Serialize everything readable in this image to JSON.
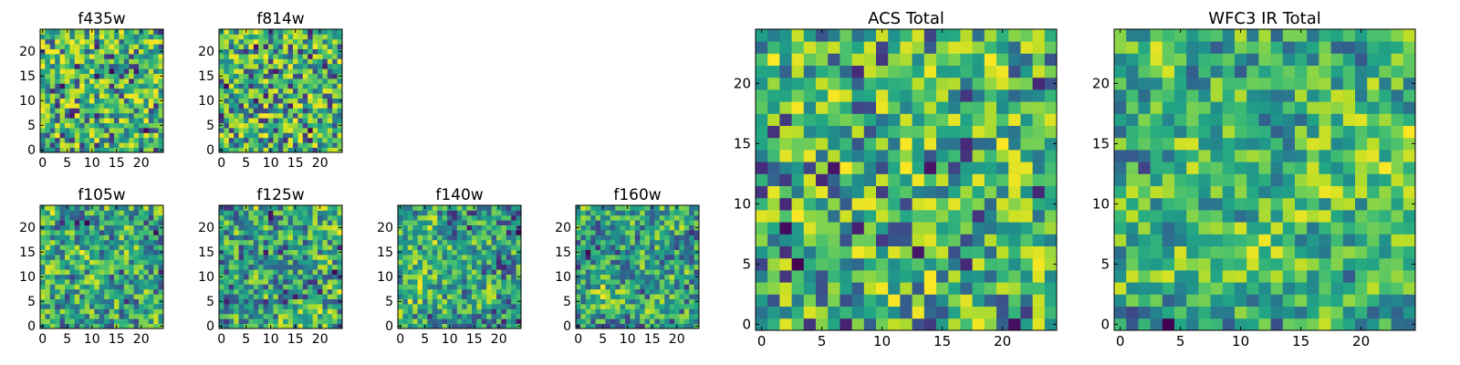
{
  "chart_data": [
    {
      "type": "heatmap",
      "id": "f435w",
      "title": "f435w",
      "shape": [
        25,
        25
      ],
      "colormap": "viridis",
      "xticks": [
        "0",
        "5",
        "10",
        "15",
        "20"
      ],
      "yticks": [
        "0",
        "5",
        "10",
        "15",
        "20"
      ],
      "texture": "noisy",
      "seed": 11
    },
    {
      "type": "heatmap",
      "id": "f814w",
      "title": "f814w",
      "shape": [
        25,
        25
      ],
      "colormap": "viridis",
      "xticks": [
        "0",
        "5",
        "10",
        "15",
        "20"
      ],
      "yticks": [
        "0",
        "5",
        "10",
        "15",
        "20"
      ],
      "texture": "noisy",
      "seed": 23
    },
    {
      "type": "heatmap",
      "id": "f105w",
      "title": "f105w",
      "shape": [
        25,
        25
      ],
      "colormap": "viridis",
      "xticks": [
        "0",
        "5",
        "10",
        "15",
        "20"
      ],
      "yticks": [
        "0",
        "5",
        "10",
        "15",
        "20"
      ],
      "texture": "smooth",
      "seed": 37
    },
    {
      "type": "heatmap",
      "id": "f125w",
      "title": "f125w",
      "shape": [
        25,
        25
      ],
      "colormap": "viridis",
      "xticks": [
        "0",
        "5",
        "10",
        "15",
        "20"
      ],
      "yticks": [
        "0",
        "5",
        "10",
        "15",
        "20"
      ],
      "texture": "smooth",
      "seed": 41
    },
    {
      "type": "heatmap",
      "id": "f140w",
      "title": "f140w",
      "shape": [
        25,
        25
      ],
      "colormap": "viridis",
      "xticks": [
        "0",
        "5",
        "10",
        "15",
        "20"
      ],
      "yticks": [
        "0",
        "5",
        "10",
        "15",
        "20"
      ],
      "texture": "smooth",
      "seed": 53
    },
    {
      "type": "heatmap",
      "id": "f160w",
      "title": "f160w",
      "shape": [
        25,
        25
      ],
      "colormap": "viridis",
      "xticks": [
        "0",
        "5",
        "10",
        "15",
        "20"
      ],
      "yticks": [
        "0",
        "5",
        "10",
        "15",
        "20"
      ],
      "texture": "smooth",
      "seed": 67
    },
    {
      "type": "heatmap",
      "id": "acs-total",
      "title": "ACS Total",
      "shape": [
        25,
        25
      ],
      "colormap": "viridis",
      "xticks": [
        "0",
        "5",
        "10",
        "15",
        "20"
      ],
      "yticks": [
        "0",
        "5",
        "10",
        "15",
        "20"
      ],
      "texture": "noisy",
      "seed": 79
    },
    {
      "type": "heatmap",
      "id": "wfc3-ir-total",
      "title": "WFC3 IR Total",
      "shape": [
        25,
        25
      ],
      "colormap": "viridis",
      "xticks": [
        "0",
        "5",
        "10",
        "15",
        "20"
      ],
      "yticks": [
        "0",
        "5",
        "10",
        "15",
        "20"
      ],
      "texture": "smooth",
      "seed": 97
    }
  ]
}
